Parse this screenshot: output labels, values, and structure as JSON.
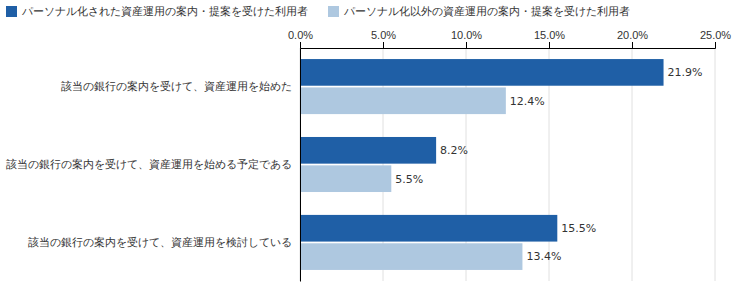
{
  "chart_data": {
    "type": "bar",
    "orientation": "horizontal",
    "categories": [
      "該当の銀行の案内を受けて、資産運用を始めた",
      "該当の銀行の案内を受けて、資産運用を始める予定である",
      "該当の銀行の案内を受けて、資産運用を検討している"
    ],
    "series": [
      {
        "name": "パーソナル化された資産運用の案内・提案を受けた利用者",
        "color": "#1f5fa6",
        "values": [
          21.9,
          8.2,
          15.5
        ],
        "value_labels": [
          "21.9%",
          "8.2%",
          "15.5%"
        ]
      },
      {
        "name": "パーソナル化以外の資産運用の案内・提案を受けた利用者",
        "color": "#aec8e0",
        "values": [
          12.4,
          5.5,
          13.4
        ],
        "value_labels": [
          "12.4%",
          "5.5%",
          "13.4%"
        ]
      }
    ],
    "xlim": [
      0,
      25
    ],
    "xticks": [
      {
        "value": 0,
        "label": "0.0%"
      },
      {
        "value": 5,
        "label": "5.0%"
      },
      {
        "value": 10,
        "label": "10.0%"
      },
      {
        "value": 15,
        "label": "15.0%"
      },
      {
        "value": 20,
        "label": "20.0%"
      },
      {
        "value": 25,
        "label": "25.0%"
      }
    ],
    "grid": true,
    "data_labels": true,
    "legend": "upper left"
  }
}
